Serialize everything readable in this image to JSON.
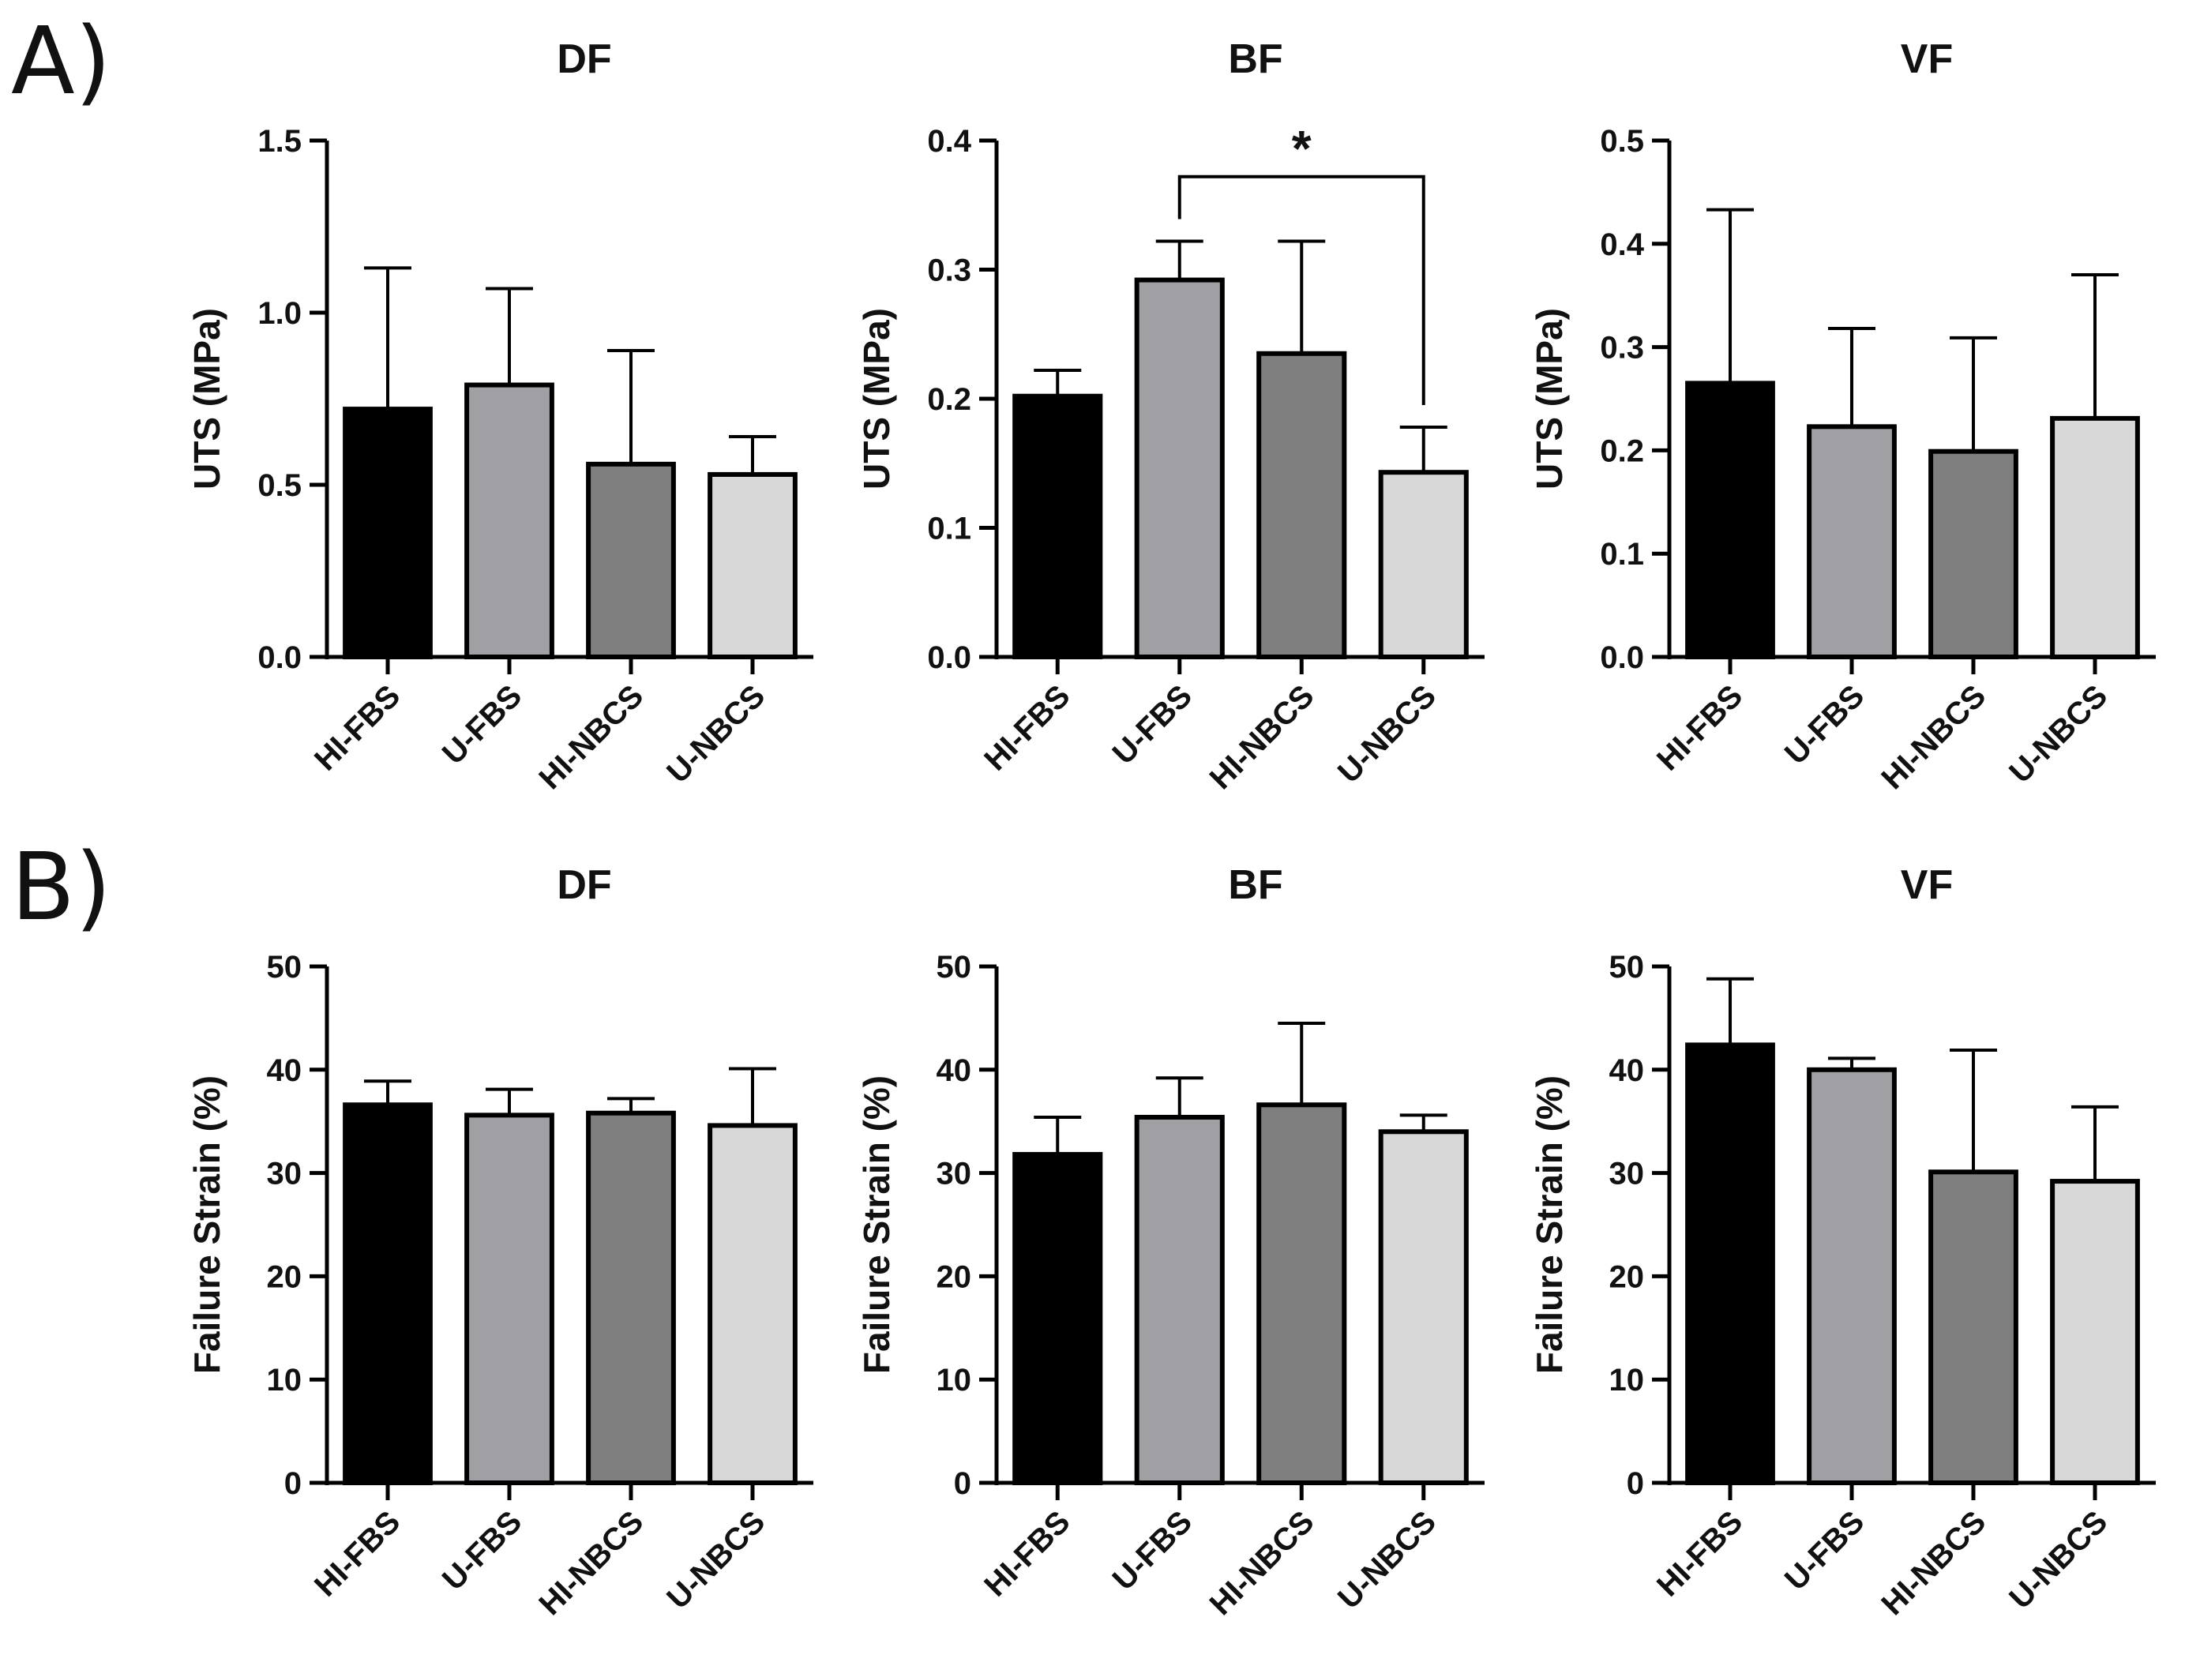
{
  "panel_labels": [
    "A)",
    "B)"
  ],
  "colors": {
    "bars": [
      "#000000",
      "#a09fa4",
      "#7f7f7f",
      "#d8d8d8"
    ],
    "axis": "#000000"
  },
  "chart_data": [
    {
      "type": "bar",
      "title": "DF",
      "xlabel": "",
      "ylabel": "UTS (MPa)",
      "categories": [
        "HI-FBS",
        "U-FBS",
        "HI-NBCS",
        "U-NBCS"
      ],
      "values": [
        0.72,
        0.79,
        0.56,
        0.53
      ],
      "errors": [
        0.41,
        0.28,
        0.33,
        0.11
      ],
      "ylim": [
        0,
        1.5
      ],
      "yticks": [
        0,
        0.5,
        1.0,
        1.5
      ],
      "ytick_labels": [
        "0.0",
        "0.5",
        "1.0",
        "1.5"
      ],
      "significance": []
    },
    {
      "type": "bar",
      "title": "BF",
      "xlabel": "",
      "ylabel": "UTS (MPa)",
      "categories": [
        "HI-FBS",
        "U-FBS",
        "HI-NBCS",
        "U-NBCS"
      ],
      "values": [
        0.202,
        0.292,
        0.235,
        0.143
      ],
      "errors": [
        0.02,
        0.03,
        0.087,
        0.035
      ],
      "ylim": [
        0,
        0.4
      ],
      "yticks": [
        0,
        0.1,
        0.2,
        0.3,
        0.4
      ],
      "ytick_labels": [
        "0.0",
        "0.1",
        "0.2",
        "0.3",
        "0.4"
      ],
      "significance": [
        {
          "from": "U-FBS",
          "to": "U-NBCS",
          "label": "*",
          "level": 0.372
        }
      ]
    },
    {
      "type": "bar",
      "title": "VF",
      "xlabel": "",
      "ylabel": "UTS (MPa)",
      "categories": [
        "HI-FBS",
        "U-FBS",
        "HI-NBCS",
        "U-NBCS"
      ],
      "values": [
        0.265,
        0.223,
        0.199,
        0.231
      ],
      "errors": [
        0.168,
        0.095,
        0.11,
        0.139
      ],
      "ylim": [
        0,
        0.5
      ],
      "yticks": [
        0,
        0.1,
        0.2,
        0.3,
        0.4,
        0.5
      ],
      "ytick_labels": [
        "0.0",
        "0.1",
        "0.2",
        "0.3",
        "0.4",
        "0.5"
      ],
      "significance": []
    },
    {
      "type": "bar",
      "title": "DF",
      "xlabel": "",
      "ylabel": "Failure Strain (%)",
      "categories": [
        "HI-FBS",
        "U-FBS",
        "HI-NBCS",
        "U-NBCS"
      ],
      "values": [
        36.6,
        35.6,
        35.8,
        34.6
      ],
      "errors": [
        2.3,
        2.5,
        1.4,
        5.5
      ],
      "ylim": [
        0,
        50
      ],
      "yticks": [
        0,
        10,
        20,
        30,
        40,
        50
      ],
      "ytick_labels": [
        "0",
        "10",
        "20",
        "30",
        "40",
        "50"
      ],
      "significance": []
    },
    {
      "type": "bar",
      "title": "BF",
      "xlabel": "",
      "ylabel": "Failure Strain (%)",
      "categories": [
        "HI-FBS",
        "U-FBS",
        "HI-NBCS",
        "U-NBCS"
      ],
      "values": [
        31.8,
        35.4,
        36.6,
        34.0
      ],
      "errors": [
        3.6,
        3.8,
        7.9,
        1.6
      ],
      "ylim": [
        0,
        50
      ],
      "yticks": [
        0,
        10,
        20,
        30,
        40,
        50
      ],
      "ytick_labels": [
        "0",
        "10",
        "20",
        "30",
        "40",
        "50"
      ],
      "significance": []
    },
    {
      "type": "bar",
      "title": "VF",
      "xlabel": "",
      "ylabel": "Failure Strain (%)",
      "categories": [
        "HI-FBS",
        "U-FBS",
        "HI-NBCS",
        "U-NBCS"
      ],
      "values": [
        42.4,
        40.0,
        30.1,
        29.2
      ],
      "errors": [
        6.4,
        1.1,
        11.8,
        7.2
      ],
      "ylim": [
        0,
        50
      ],
      "yticks": [
        0,
        10,
        20,
        30,
        40,
        50
      ],
      "ytick_labels": [
        "0",
        "10",
        "20",
        "30",
        "40",
        "50"
      ],
      "significance": []
    }
  ]
}
